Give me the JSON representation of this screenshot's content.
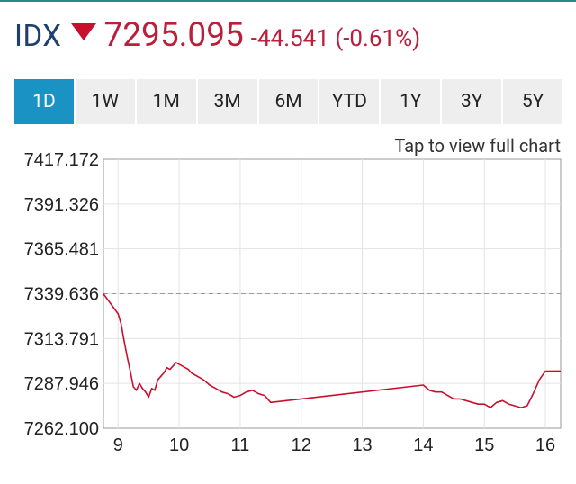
{
  "header": {
    "symbol": "IDX",
    "price": "7295.095",
    "change": "-44.541 (-0.61%)",
    "direction_icon": "down-triangle-icon",
    "accent_color": "#b8203c"
  },
  "tabs": [
    {
      "label": "1D",
      "active": true
    },
    {
      "label": "1W",
      "active": false
    },
    {
      "label": "1M",
      "active": false
    },
    {
      "label": "3M",
      "active": false
    },
    {
      "label": "6M",
      "active": false
    },
    {
      "label": "YTD",
      "active": false
    },
    {
      "label": "1Y",
      "active": false
    },
    {
      "label": "3Y",
      "active": false
    },
    {
      "label": "5Y",
      "active": false
    }
  ],
  "hint": "Tap to view full chart",
  "chart_data": {
    "type": "line",
    "title": "",
    "xlabel": "",
    "ylabel": "",
    "x_ticks": [
      "9",
      "10",
      "11",
      "12",
      "13",
      "14",
      "15",
      "16"
    ],
    "y_ticks": [
      "7262.100",
      "7287.946",
      "7313.791",
      "7339.636",
      "7365.481",
      "7391.326",
      "7417.172"
    ],
    "ylim": [
      7262.1,
      7417.172
    ],
    "xlim": [
      8.76,
      16.25
    ],
    "previous_close": 7339.636,
    "grid": true,
    "line_color": "#c8102e",
    "series": [
      {
        "x": [
          8.76,
          9.0,
          9.05,
          9.1,
          9.15,
          9.2,
          9.25,
          9.3,
          9.35,
          9.4,
          9.45,
          9.5,
          9.55,
          9.6,
          9.65,
          9.7,
          9.75,
          9.8,
          9.85,
          9.9,
          9.95,
          10.0,
          10.05,
          10.1,
          10.15,
          10.2,
          10.3,
          10.4,
          10.5,
          10.6,
          10.7,
          10.8,
          10.9,
          11.0,
          11.1,
          11.2,
          11.3,
          11.4,
          11.5,
          14.0,
          14.1,
          14.2,
          14.3,
          14.4,
          14.5,
          14.6,
          14.7,
          14.8,
          14.9,
          15.0,
          15.1,
          15.2,
          15.3,
          15.4,
          15.5,
          15.6,
          15.7,
          15.8,
          15.9,
          16.0,
          16.25
        ],
        "y": [
          7339.6,
          7328.0,
          7322.0,
          7312.0,
          7303.0,
          7295.0,
          7286.0,
          7284.0,
          7288.0,
          7285.0,
          7283.0,
          7280.0,
          7285.0,
          7284.0,
          7290.0,
          7292.0,
          7294.0,
          7297.0,
          7296.0,
          7298.0,
          7300.0,
          7299.0,
          7298.0,
          7297.0,
          7296.0,
          7294.0,
          7292.0,
          7290.0,
          7287.0,
          7285.0,
          7283.0,
          7282.0,
          7280.0,
          7281.0,
          7283.0,
          7284.0,
          7282.0,
          7281.0,
          7277.0,
          7287.0,
          7284.0,
          7283.0,
          7283.0,
          7281.0,
          7279.0,
          7279.0,
          7278.0,
          7277.0,
          7276.0,
          7276.0,
          7274.0,
          7277.0,
          7278.0,
          7276.0,
          7275.0,
          7274.0,
          7275.0,
          7282.0,
          7290.0,
          7295.0,
          7295.1
        ]
      }
    ]
  }
}
